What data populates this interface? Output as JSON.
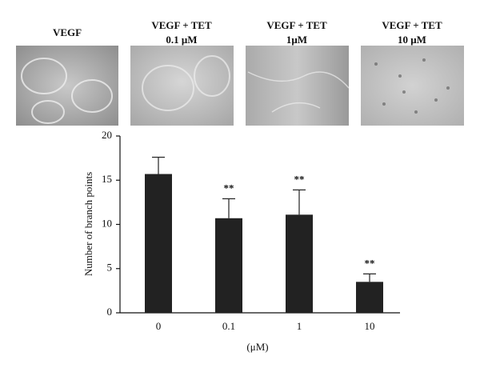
{
  "panels": [
    {
      "lines": [
        "VEGF"
      ]
    },
    {
      "lines": [
        "VEGF + TET",
        "0.1 μM"
      ]
    },
    {
      "lines": [
        "VEGF + TET",
        "1μM"
      ]
    },
    {
      "lines": [
        "VEGF + TET",
        "10 μM"
      ]
    }
  ],
  "chart_data": {
    "type": "bar",
    "ylabel": "Number of branch points",
    "xlabel": "(μM)",
    "categories": [
      "0",
      "0.1",
      "1",
      "10"
    ],
    "values": [
      15.7,
      10.7,
      11.1,
      3.5
    ],
    "errors": [
      1.9,
      2.2,
      2.8,
      0.9
    ],
    "annotations": [
      null,
      "**",
      "**",
      "**"
    ],
    "color": "#222222",
    "ylim": [
      0,
      20
    ],
    "yticks": [
      0,
      5,
      10,
      15,
      20
    ]
  }
}
